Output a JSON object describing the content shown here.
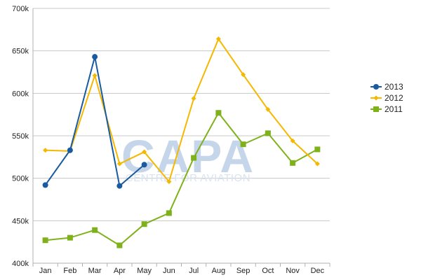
{
  "chart_data": {
    "type": "line",
    "title": "",
    "xlabel": "",
    "ylabel": "",
    "categories": [
      "Jan",
      "Feb",
      "Mar",
      "Apr",
      "May",
      "Jun",
      "Jul",
      "Aug",
      "Sep",
      "Oct",
      "Nov",
      "Dec"
    ],
    "ylim": [
      400000,
      700000
    ],
    "yticks": [
      400000,
      450000,
      500000,
      550000,
      600000,
      650000,
      700000
    ],
    "ytick_labels": [
      "400k",
      "450k",
      "500k",
      "550k",
      "600k",
      "650k",
      "700k"
    ],
    "grid": true,
    "legend_position": "right",
    "series": [
      {
        "name": "2013",
        "color": "#1a5aa0",
        "marker": "circle",
        "values": [
          492000,
          533000,
          643000,
          491000,
          516000,
          null,
          null,
          null,
          null,
          null,
          null,
          null
        ]
      },
      {
        "name": "2012",
        "color": "#f5b800",
        "marker": "diamond",
        "values": [
          533000,
          532000,
          621000,
          517000,
          531000,
          496000,
          594000,
          664000,
          622000,
          581000,
          544000,
          517000
        ]
      },
      {
        "name": "2011",
        "color": "#7fb21a",
        "marker": "square",
        "values": [
          427000,
          430000,
          439000,
          421000,
          446000,
          459000,
          524000,
          577000,
          540000,
          553000,
          518000,
          534000
        ]
      }
    ]
  },
  "watermark": {
    "main": "CAPA",
    "sub": "CENTRE FOR AVIATION"
  }
}
